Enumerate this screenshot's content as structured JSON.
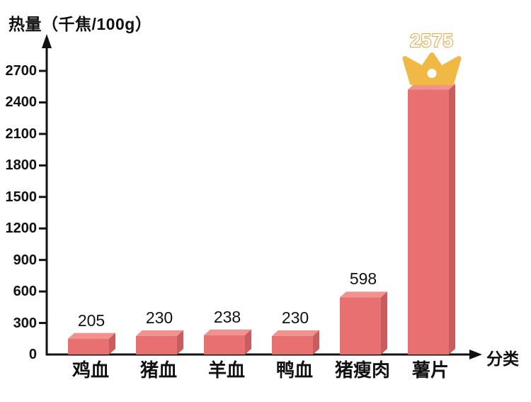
{
  "chart_data": {
    "type": "bar",
    "title": "热量（千焦/100g）",
    "xlabel": "分类",
    "ylabel": "",
    "categories": [
      "鸡血",
      "猪血",
      "羊血",
      "鸭血",
      "猪瘦肉",
      "薯片"
    ],
    "values": [
      205,
      230,
      238,
      230,
      598,
      2575
    ],
    "value_labels": [
      "205",
      "230",
      "238",
      "230",
      "598",
      "2575"
    ],
    "yticks": [
      0,
      300,
      600,
      900,
      1200,
      1500,
      1800,
      2100,
      2400,
      2700
    ],
    "ylim": [
      0,
      2880
    ],
    "grid": false,
    "legend": null,
    "bar_style": "3d-cuboid",
    "highlight": {
      "category": "薯片",
      "value": 2575,
      "decoration": "crown-icon",
      "label_style": "white-with-gold-outline"
    },
    "colors": {
      "background": "#FFFFFF",
      "bar_front": "#E97070",
      "bar_top": "#F2928E",
      "bar_side": "#C75D5E",
      "crown": "#F0B845",
      "highlight_label_fill": "#FFFFFF",
      "highlight_label_outline": "#E7A43F",
      "axis": "#111111",
      "text": "#111111"
    }
  }
}
